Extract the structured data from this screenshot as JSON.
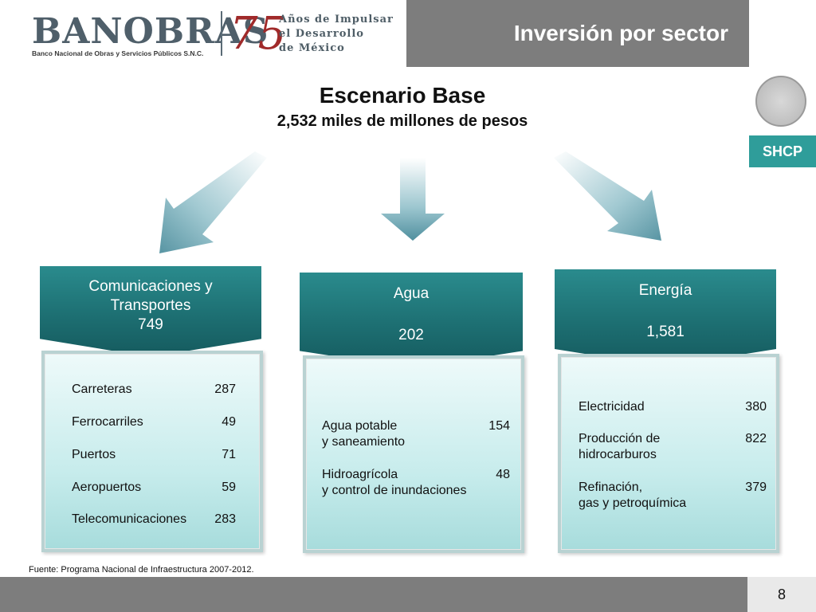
{
  "header": {
    "brand": "BANOBRAS",
    "brand_sub": "Banco Nacional de Obras y Servicios Públicos S.N.C.",
    "anniversary_number": "75",
    "anniversary_line1": "Años de Impulsar",
    "anniversary_line2": "el Desarrollo",
    "anniversary_line3": "de México",
    "page_heading": "Inversión por sector",
    "ministry": "SHCP"
  },
  "main": {
    "title": "Escenario Base",
    "subtitle": "2,532 miles de millones de pesos"
  },
  "sectors": [
    {
      "name_line1": "Comunicaciones y",
      "name_line2": "Transportes",
      "total": "749",
      "items": [
        {
          "label": "Carreteras",
          "value": "287"
        },
        {
          "label": "Ferrocarriles",
          "value": "49"
        },
        {
          "label": "Puertos",
          "value": "71"
        },
        {
          "label": "Aeropuertos",
          "value": "59"
        },
        {
          "label": "Telecomunicaciones",
          "value": "283"
        }
      ]
    },
    {
      "name_line1": "Agua",
      "total": "202",
      "items": [
        {
          "label": "Agua potable",
          "label2": "y saneamiento",
          "value": "154"
        },
        {
          "label": "Hidroagrícola",
          "label2": "y control de inundaciones",
          "value": "48"
        }
      ]
    },
    {
      "name_line1": "Energía",
      "total": "1,581",
      "items": [
        {
          "label": "Electricidad",
          "value": "380"
        },
        {
          "label": "Producción de",
          "label2": "hidrocarburos",
          "value": "822"
        },
        {
          "label": "Refinación,",
          "label2": "gas y petroquímica",
          "value": "379"
        }
      ]
    }
  ],
  "footer": {
    "source": "Fuente: Programa Nacional de Infraestructura 2007-2012.",
    "page_number": "8"
  },
  "colors": {
    "teal_dark": "#1d6f72",
    "teal_light": "#c7ecec",
    "header_gray": "#7d7d7d",
    "shcp_teal": "#2f9d9a"
  }
}
